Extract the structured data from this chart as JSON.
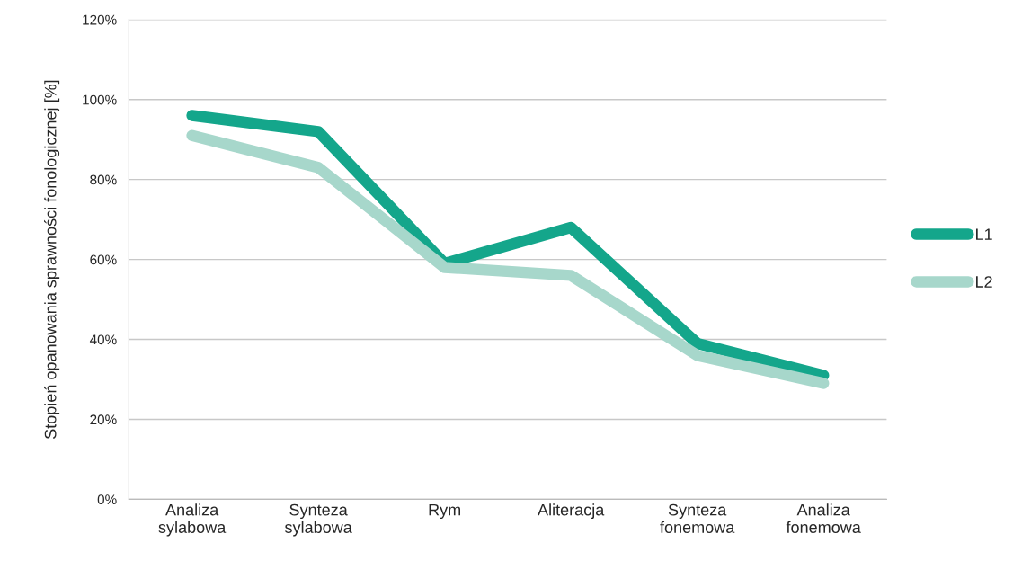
{
  "chart_data": {
    "type": "line",
    "ylabel": "Stopień opanowania sprawności fonologicznej [%]",
    "categories": [
      "Analiza sylabowa",
      "Synteza sylabowa",
      "Rym",
      "Aliteracja",
      "Synteza fonemowa",
      "Analiza fonemowa"
    ],
    "series": [
      {
        "name": "L1",
        "color": "#14a68b",
        "values": [
          96,
          92,
          59,
          68,
          39,
          31
        ]
      },
      {
        "name": "L2",
        "color": "#a7d7cb",
        "values": [
          91,
          83,
          58,
          56,
          36,
          29
        ]
      }
    ],
    "ylim": [
      0,
      120
    ],
    "yticks": [
      {
        "value": 0,
        "label": "0%"
      },
      {
        "value": 20,
        "label": "20%"
      },
      {
        "value": 40,
        "label": "40%"
      },
      {
        "value": 60,
        "label": "60%"
      },
      {
        "value": 80,
        "label": "80%"
      },
      {
        "value": 100,
        "label": "100%"
      },
      {
        "value": 120,
        "label": "120%"
      }
    ],
    "grid": "y",
    "legend": "right",
    "marker": "none",
    "line_style": "solid"
  }
}
